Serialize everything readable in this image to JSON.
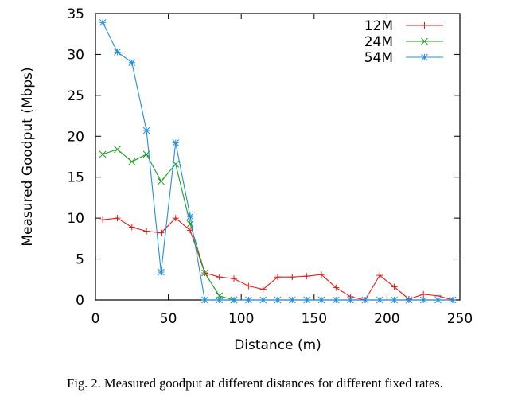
{
  "caption": "Fig. 2.   Measured goodput at different distances for different fixed rates.",
  "chart_data": {
    "type": "line",
    "xlabel": "Distance (m)",
    "ylabel": "Measured Goodput (Mbps)",
    "xlim": [
      0,
      250
    ],
    "ylim": [
      0,
      35
    ],
    "xticks": [
      0,
      50,
      100,
      150,
      200,
      250
    ],
    "yticks": [
      0,
      5,
      10,
      15,
      20,
      25,
      30,
      35
    ],
    "grid": false,
    "legend": "top-right",
    "series": [
      {
        "name": "12M",
        "color": "#e8191a",
        "marker": "plus",
        "x": [
          5,
          15,
          25,
          35,
          45,
          55,
          65,
          75,
          85,
          95,
          105,
          115,
          125,
          135,
          145,
          155,
          165,
          175,
          185,
          195,
          205,
          215,
          225,
          235,
          245
        ],
        "y": [
          9.8,
          10.0,
          8.9,
          8.4,
          8.2,
          10.0,
          8.5,
          3.3,
          2.8,
          2.6,
          1.7,
          1.3,
          2.8,
          2.8,
          2.9,
          3.1,
          1.5,
          0.4,
          0.0,
          3.0,
          1.6,
          0.1,
          0.7,
          0.5,
          0.0
        ]
      },
      {
        "name": "24M",
        "color": "#1aa01a",
        "marker": "cross",
        "x": [
          5,
          15,
          25,
          35,
          45,
          55,
          65,
          75,
          85,
          95
        ],
        "y": [
          17.8,
          18.4,
          16.9,
          17.8,
          14.5,
          16.6,
          9.3,
          3.3,
          0.5,
          0.0
        ]
      },
      {
        "name": "54M",
        "color": "#1f8fe0",
        "marker": "star",
        "x": [
          5,
          15,
          25,
          35,
          45,
          55,
          65,
          75,
          85,
          95,
          105,
          115,
          125,
          135,
          145,
          155,
          165,
          175,
          185,
          195,
          205,
          215,
          225,
          235,
          245
        ],
        "y": [
          33.9,
          30.3,
          29.0,
          20.7,
          3.4,
          19.2,
          10.2,
          0.0,
          0.0,
          0.0,
          0.0,
          0.0,
          0.0,
          0.0,
          0.0,
          0.0,
          0.0,
          0.0,
          0.0,
          0.0,
          0.0,
          0.0,
          0.0,
          0.0,
          0.0
        ]
      }
    ]
  }
}
